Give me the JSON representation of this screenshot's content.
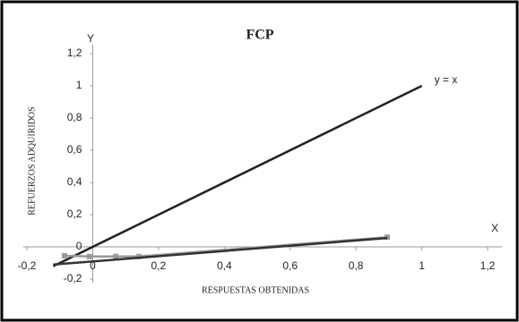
{
  "chart_data": {
    "type": "line",
    "title": "FCP",
    "y_axis_name": "Y",
    "x_axis_name": "X",
    "y_label": "REFUERZOS  ADQUIRIDOS",
    "x_label": "RESPUESTAS  OBTENIDAS",
    "annotation": "y = x",
    "xlim": [
      -0.2,
      1.2
    ],
    "ylim": [
      -0.2,
      1.2
    ],
    "xticks": [
      {
        "value": -0.2,
        "label": "-0,2"
      },
      0,
      {
        "value": 0.2,
        "label": "0,2"
      },
      {
        "value": 0.4,
        "label": "0,4"
      },
      {
        "value": 0.6,
        "label": "0,6"
      },
      {
        "value": 0.8,
        "label": "0,8"
      },
      1,
      {
        "value": 1.2,
        "label": "1,2"
      }
    ],
    "yticks": [
      {
        "value": -0.2,
        "label": "-0,2"
      },
      0,
      {
        "value": 0.2,
        "label": "0,2"
      },
      {
        "value": 0.4,
        "label": "0,4"
      },
      {
        "value": 0.6,
        "label": "0,6"
      },
      {
        "value": 0.8,
        "label": "0,8"
      },
      1,
      {
        "value": 1.2,
        "label": "1,2"
      }
    ],
    "series": [
      {
        "color": "#222222",
        "x": [
          -0.12,
          1
        ],
        "values": [
          -0.12,
          1
        ]
      },
      {
        "color": "#999999",
        "markers": true,
        "x": [
          -0.086,
          -0.01,
          0.07,
          0.14,
          0.895
        ],
        "values": [
          -0.055,
          -0.06,
          -0.06,
          -0.06,
          0.06
        ]
      },
      {
        "color": "#333333",
        "x": [
          -0.12,
          0.895
        ],
        "values": [
          -0.11,
          0.055
        ]
      }
    ]
  }
}
